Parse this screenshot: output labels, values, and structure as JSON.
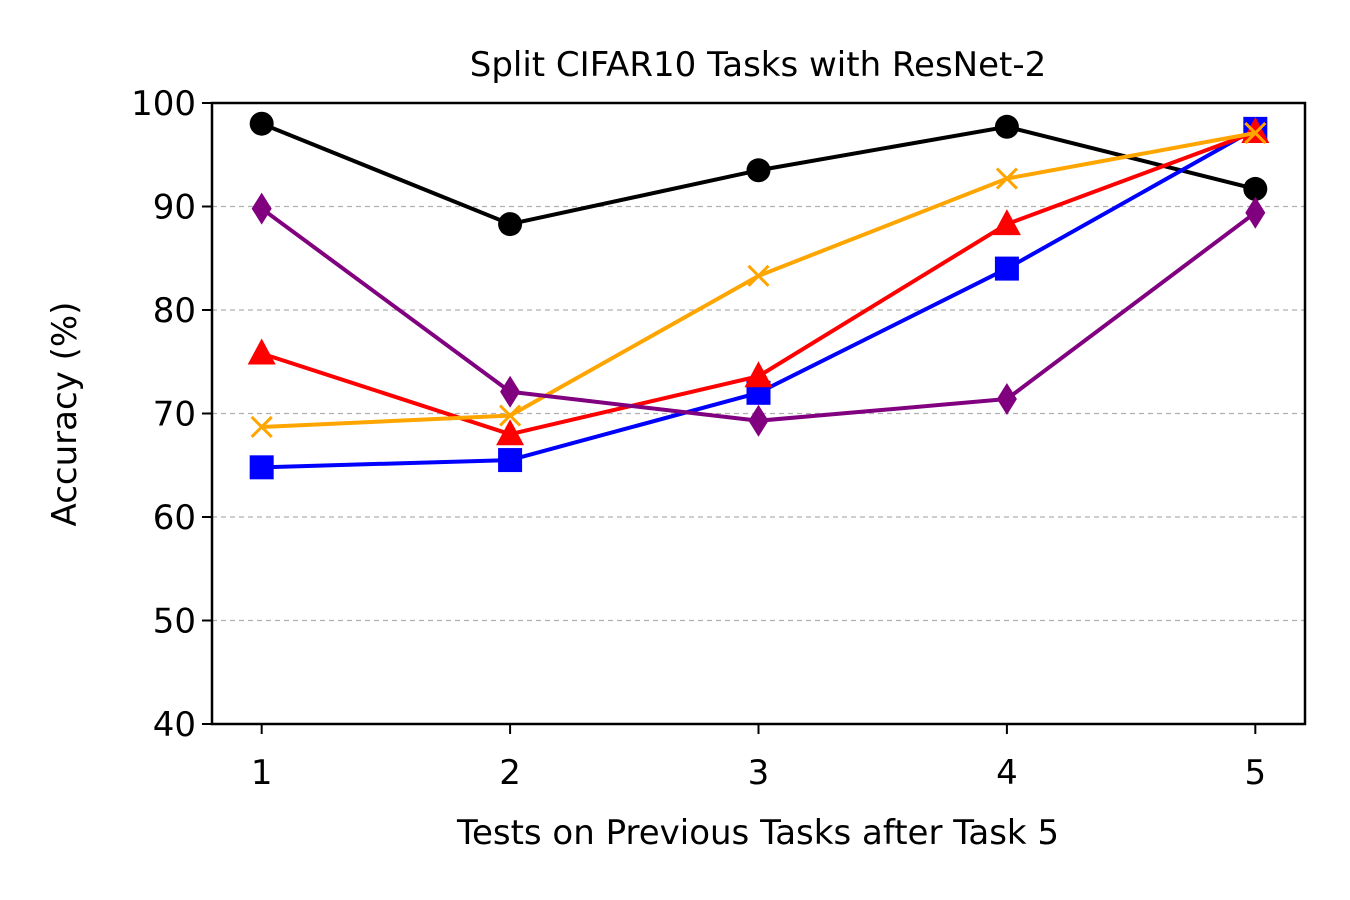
{
  "chart_data": {
    "type": "line",
    "title": "Split CIFAR10 Tasks with ResNet-2",
    "xlabel": "Tests on Previous Tasks after Task 5",
    "ylabel": "Accuracy (%)",
    "x": [
      1,
      2,
      3,
      4,
      5
    ],
    "xticks": [
      "1",
      "2",
      "3",
      "4",
      "5"
    ],
    "xlim": [
      0.8,
      5.2
    ],
    "ylim": [
      40,
      100
    ],
    "yticks": [
      "40",
      "50",
      "60",
      "70",
      "80",
      "90",
      "100"
    ],
    "grid": "y-dashed",
    "legend": "none",
    "series": [
      {
        "color": "#000000",
        "marker": "circle",
        "values": [
          98.0,
          88.3,
          93.5,
          97.7,
          91.7
        ]
      },
      {
        "color": "#0000ff",
        "marker": "square",
        "values": [
          64.8,
          65.5,
          72.0,
          84.0,
          97.5
        ]
      },
      {
        "color": "#ff0000",
        "marker": "triangle",
        "values": [
          75.8,
          68.0,
          73.6,
          88.3,
          97.2
        ]
      },
      {
        "color": "#ffa500",
        "marker": "x",
        "values": [
          68.7,
          69.8,
          83.3,
          92.7,
          97.1
        ]
      },
      {
        "color": "#800080",
        "marker": "diamond",
        "values": [
          89.8,
          72.1,
          69.3,
          71.4,
          89.4
        ]
      }
    ]
  }
}
